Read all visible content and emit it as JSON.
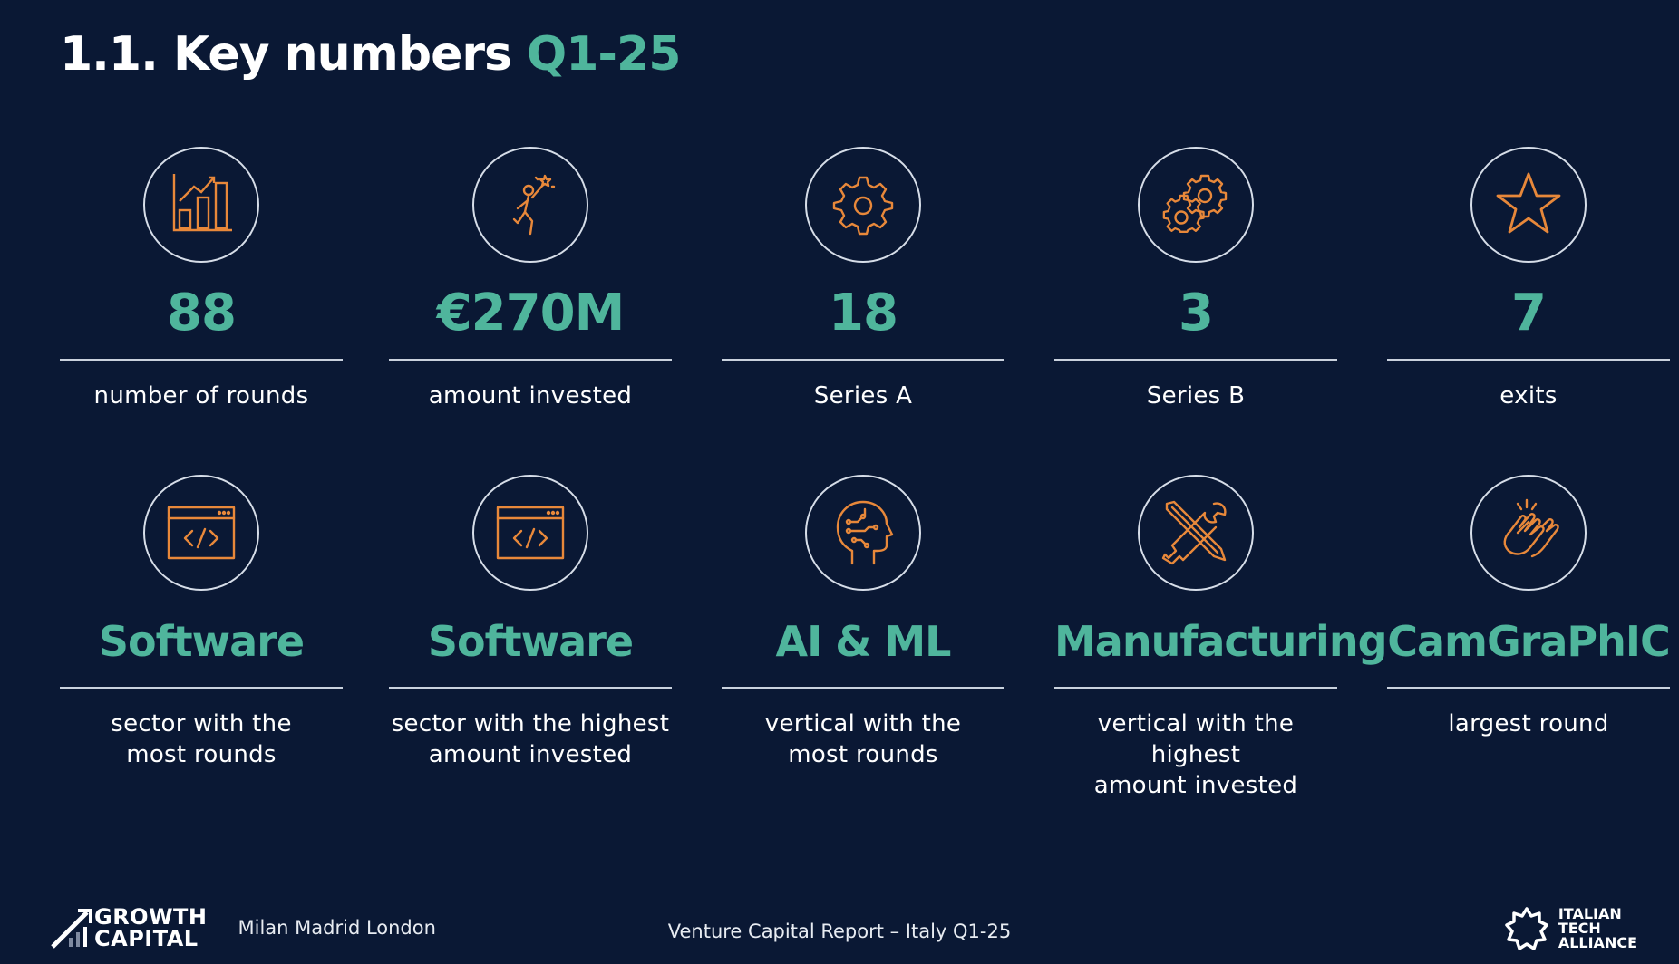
{
  "header": {
    "title": "1.1. Key numbers",
    "title_accent": "Q1-25"
  },
  "row1": [
    {
      "icon": "bar-chart-icon",
      "value": "88",
      "label": "number of rounds"
    },
    {
      "icon": "achievement-person-icon",
      "value": "€270M",
      "label": "amount invested"
    },
    {
      "icon": "gear-icon",
      "value": "18",
      "label": "Series A"
    },
    {
      "icon": "gears-icon",
      "value": "3",
      "label": "Series B"
    },
    {
      "icon": "star-icon",
      "value": "7",
      "label": "exits"
    }
  ],
  "row2": [
    {
      "icon": "code-window-icon",
      "value": "Software",
      "label_line1": "sector with the",
      "label_line2": "most rounds"
    },
    {
      "icon": "code-window-icon",
      "value": "Software",
      "label_line1": "sector with the highest",
      "label_line2": "amount invested"
    },
    {
      "icon": "ai-head-icon",
      "value": "AI & ML",
      "label_line1": "vertical with the",
      "label_line2": "most rounds"
    },
    {
      "icon": "tools-icon",
      "value": "Manufacturing",
      "label_line1": "vertical with the highest",
      "label_line2": "amount invested"
    },
    {
      "icon": "clapping-hands-icon",
      "value": "CamGraPhIC",
      "label_line1": "largest round",
      "label_line2": ""
    }
  ],
  "footer": {
    "logo_line1": "GROWTH",
    "logo_line2": "CAPITAL",
    "cities": "Milan Madrid London",
    "report": "Venture Capital Report – Italy Q1-25",
    "alliance_line1": "ITALIAN",
    "alliance_line2": "TECH",
    "alliance_line3": "ALLIANCE"
  },
  "colors": {
    "background": "#0a1834",
    "accent": "#4fb59c",
    "icon": "#e8883a"
  }
}
